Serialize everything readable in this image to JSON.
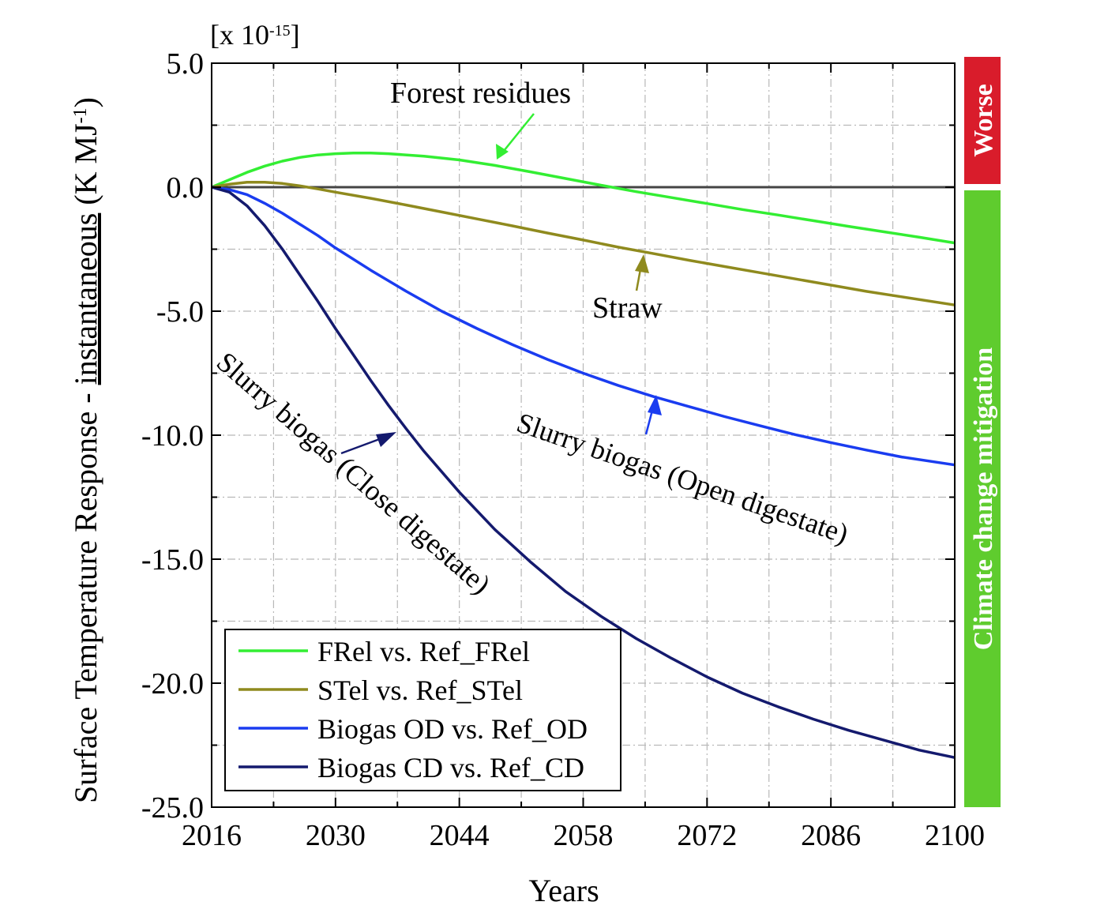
{
  "chart_data": {
    "type": "line",
    "xlabel": "Years",
    "ylabel_prefix": "Surface Temperature Response - ",
    "ylabel_underlined": "instantaneous",
    "ylabel_unit_base": " (K MJ",
    "ylabel_unit_exp": "-1",
    "ylabel_unit_close": ")",
    "multiplier_base": "[x 10",
    "multiplier_exp": "-15",
    "multiplier_close": "]",
    "xlim": [
      2016,
      2100
    ],
    "ylim": [
      -25,
      5
    ],
    "x_ticks": [
      2016,
      2030,
      2044,
      2058,
      2072,
      2086,
      2100
    ],
    "x_tick_labels": [
      "2016",
      "2030",
      "2044",
      "2058",
      "2072",
      "2086",
      "2100"
    ],
    "y_ticks": [
      5,
      0,
      -5,
      -10,
      -15,
      -20,
      -25
    ],
    "y_tick_labels": [
      "5.0",
      "0.0",
      "-5.0",
      "-10.0",
      "-15.0",
      "-20.0",
      "-25.0"
    ],
    "grid": true,
    "legend_position": "bottom-left",
    "series": [
      {
        "name": "FRel vs. Ref_FRel",
        "color": "#33ee33",
        "x": [
          2016,
          2018,
          2020,
          2022,
          2024,
          2026,
          2028,
          2030,
          2032,
          2034,
          2036,
          2040,
          2044,
          2048,
          2052,
          2056,
          2060,
          2064,
          2068,
          2072,
          2076,
          2080,
          2084,
          2088,
          2092,
          2096,
          2100
        ],
        "values": [
          0,
          0.3,
          0.6,
          0.85,
          1.05,
          1.2,
          1.3,
          1.35,
          1.38,
          1.38,
          1.35,
          1.25,
          1.1,
          0.88,
          0.62,
          0.35,
          0.08,
          -0.18,
          -0.42,
          -0.66,
          -0.9,
          -1.12,
          -1.35,
          -1.58,
          -1.8,
          -2.02,
          -2.25
        ]
      },
      {
        "name": "STel vs. Ref_STel",
        "color": "#8f8a1e",
        "x": [
          2016,
          2018,
          2020,
          2022,
          2024,
          2026,
          2028,
          2030,
          2034,
          2038,
          2042,
          2046,
          2050,
          2054,
          2058,
          2062,
          2066,
          2070,
          2074,
          2078,
          2082,
          2086,
          2090,
          2094,
          2100
        ],
        "values": [
          0,
          0.12,
          0.2,
          0.2,
          0.15,
          0.05,
          -0.07,
          -0.2,
          -0.45,
          -0.72,
          -1.0,
          -1.28,
          -1.56,
          -1.85,
          -2.13,
          -2.42,
          -2.68,
          -2.95,
          -3.2,
          -3.45,
          -3.7,
          -3.95,
          -4.2,
          -4.42,
          -4.75
        ]
      },
      {
        "name": "Biogas OD vs. Ref_OD",
        "color": "#1a3cf0",
        "x": [
          2016,
          2018,
          2020,
          2022,
          2024,
          2026,
          2028,
          2030,
          2034,
          2038,
          2042,
          2046,
          2050,
          2054,
          2058,
          2062,
          2066,
          2070,
          2074,
          2078,
          2082,
          2086,
          2090,
          2094,
          2100
        ],
        "values": [
          0,
          -0.1,
          -0.3,
          -0.65,
          -1.05,
          -1.5,
          -1.95,
          -2.45,
          -3.35,
          -4.2,
          -5.0,
          -5.7,
          -6.35,
          -6.95,
          -7.5,
          -8.0,
          -8.45,
          -8.85,
          -9.25,
          -9.62,
          -9.98,
          -10.3,
          -10.6,
          -10.88,
          -11.2
        ]
      },
      {
        "name": "Biogas CD vs. Ref_CD",
        "color": "#141a6e",
        "x": [
          2016,
          2018,
          2020,
          2022,
          2024,
          2026,
          2028,
          2030,
          2032,
          2034,
          2036,
          2038,
          2040,
          2044,
          2048,
          2052,
          2056,
          2060,
          2064,
          2068,
          2072,
          2076,
          2080,
          2084,
          2088,
          2092,
          2096,
          2100
        ],
        "values": [
          0,
          -0.2,
          -0.75,
          -1.55,
          -2.5,
          -3.55,
          -4.6,
          -5.7,
          -6.75,
          -7.8,
          -8.8,
          -9.75,
          -10.65,
          -12.3,
          -13.8,
          -15.1,
          -16.3,
          -17.3,
          -18.2,
          -19.0,
          -19.75,
          -20.4,
          -20.95,
          -21.45,
          -21.9,
          -22.3,
          -22.7,
          -23.0
        ]
      }
    ],
    "annotations": [
      {
        "text": "Forest residues",
        "color": "#33ee33"
      },
      {
        "text": "Straw",
        "color": "#8f8a1e"
      },
      {
        "text": "Slurry biogas (Open digestate)",
        "color": "#1a3cf0"
      },
      {
        "text": "Slurry biogas (Close digestate)",
        "color": "#141a6e"
      }
    ],
    "side_bands": [
      {
        "text": "Worse",
        "color": "#d91c2b",
        "y_from": 0,
        "y_to": 5
      },
      {
        "text": "Climate change mitigation",
        "color": "#5fcc2e",
        "y_from": -25,
        "y_to": 0
      }
    ],
    "zero_line_color": "#444444"
  }
}
